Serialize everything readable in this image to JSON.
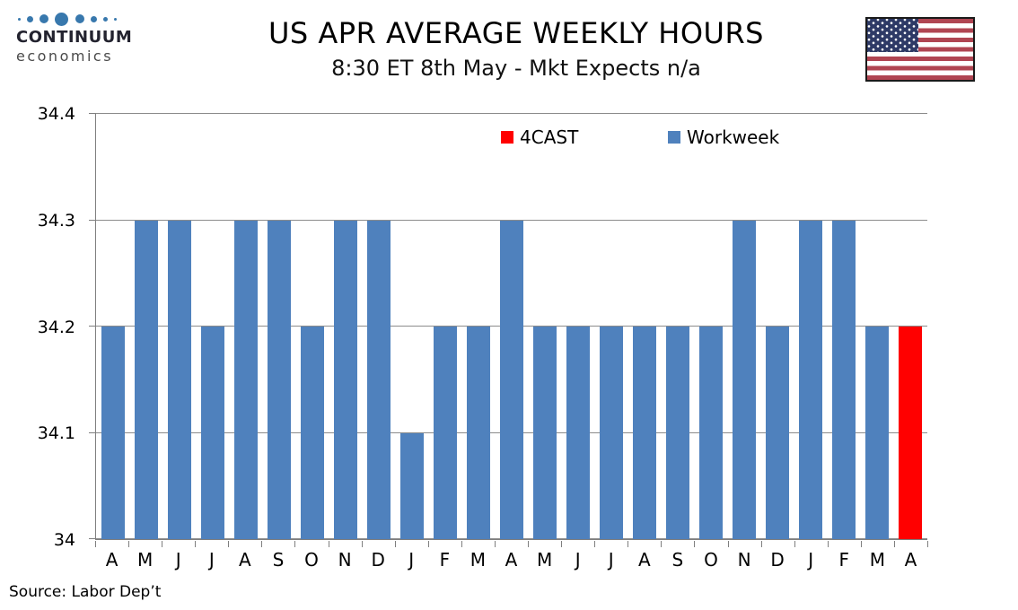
{
  "header": {
    "logo": {
      "line1": "CONTINUUM",
      "line2": "economics"
    },
    "title": "US APR AVERAGE WEEKLY HOURS",
    "subtitle": "8:30 ET 8th May - Mkt Expects n/a"
  },
  "legend": [
    {
      "label": "4CAST",
      "color": "#FF0000"
    },
    {
      "label": "Workweek",
      "color": "#4F81BD"
    }
  ],
  "source": "Source: Labor Dep’t",
  "colors": {
    "bar_blue": "#4F81BD",
    "bar_red": "#FF0000",
    "gridline": "#8c8c8c",
    "axis": "#7f7f7f",
    "logo_dot_blue": "#3878AD",
    "flag_red": "#B04552",
    "flag_blue": "#2E3A66"
  },
  "chart_data": {
    "type": "bar",
    "title": "US APR AVERAGE WEEKLY HOURS",
    "subtitle": "8:30 ET 8th May - Mkt Expects n/a",
    "xlabel": "",
    "ylabel": "",
    "ylim": [
      34,
      34.4
    ],
    "yticks": [
      34,
      34.1,
      34.2,
      34.3,
      34.4
    ],
    "ytick_labels": [
      "34",
      "34.1",
      "34.2",
      "34.3",
      "34.4"
    ],
    "grid": true,
    "legend_position": "top-inside",
    "categories": [
      "A",
      "M",
      "J",
      "J",
      "A",
      "S",
      "O",
      "N",
      "D",
      "J",
      "F",
      "M",
      "A",
      "M",
      "J",
      "J",
      "A",
      "S",
      "O",
      "N",
      "D",
      "J",
      "F",
      "M",
      "A"
    ],
    "values": [
      34.2,
      34.3,
      34.3,
      34.2,
      34.3,
      34.3,
      34.2,
      34.3,
      34.3,
      34.1,
      34.2,
      34.2,
      34.3,
      34.2,
      34.2,
      34.2,
      34.2,
      34.2,
      34.2,
      34.3,
      34.2,
      34.3,
      34.3,
      34.2,
      34.2
    ],
    "bar_series": [
      "Workweek",
      "Workweek",
      "Workweek",
      "Workweek",
      "Workweek",
      "Workweek",
      "Workweek",
      "Workweek",
      "Workweek",
      "Workweek",
      "Workweek",
      "Workweek",
      "Workweek",
      "Workweek",
      "Workweek",
      "Workweek",
      "Workweek",
      "Workweek",
      "Workweek",
      "Workweek",
      "Workweek",
      "Workweek",
      "Workweek",
      "Workweek",
      "4CAST"
    ],
    "series_colors": {
      "Workweek": "#4F81BD",
      "4CAST": "#FF0000"
    }
  }
}
